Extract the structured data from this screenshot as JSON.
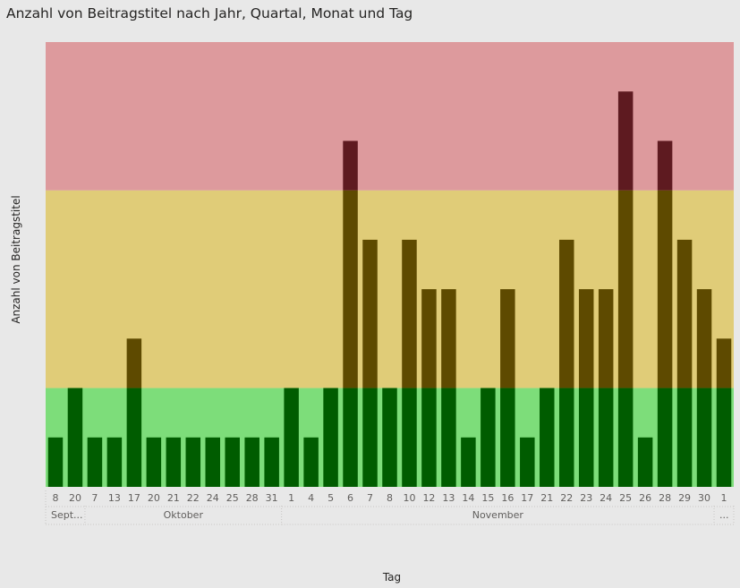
{
  "chart_data": {
    "type": "bar",
    "title": "Anzahl von Beitragstitel nach Jahr, Quartal, Monat und Tag",
    "xlabel": "Tag",
    "ylabel": "Anzahl von Beitragstitel",
    "categories": [
      "8",
      "20",
      "7",
      "13",
      "17",
      "20",
      "21",
      "22",
      "24",
      "25",
      "28",
      "31",
      "1",
      "4",
      "5",
      "6",
      "7",
      "8",
      "10",
      "12",
      "13",
      "14",
      "15",
      "16",
      "17",
      "21",
      "22",
      "23",
      "24",
      "25",
      "26",
      "28",
      "29",
      "30",
      "1"
    ],
    "values": [
      1,
      2,
      1,
      1,
      3,
      1,
      1,
      1,
      1,
      1,
      1,
      1,
      2,
      1,
      2,
      7,
      5,
      2,
      5,
      4,
      4,
      1,
      2,
      4,
      1,
      2,
      5,
      4,
      4,
      8,
      1,
      7,
      5,
      4,
      3
    ],
    "month_groups": [
      {
        "label": "Sept...",
        "count": 2
      },
      {
        "label": "Oktober",
        "count": 10
      },
      {
        "label": "November",
        "count": 22
      },
      {
        "label": "...",
        "count": 1
      }
    ],
    "ylim": [
      0,
      9
    ],
    "bands": [
      {
        "from": 0,
        "to": 2,
        "color": "#7ddd7a"
      },
      {
        "from": 2,
        "to": 6,
        "color": "#e0cc78"
      },
      {
        "from": 6,
        "to": 9,
        "color": "#dd9a9d"
      }
    ],
    "bar_colors": {
      "green_zone": "#005c00",
      "yellow_zone": "#5e4a00",
      "red_zone": "#5e1a20"
    },
    "grid": false,
    "legend": "none"
  }
}
